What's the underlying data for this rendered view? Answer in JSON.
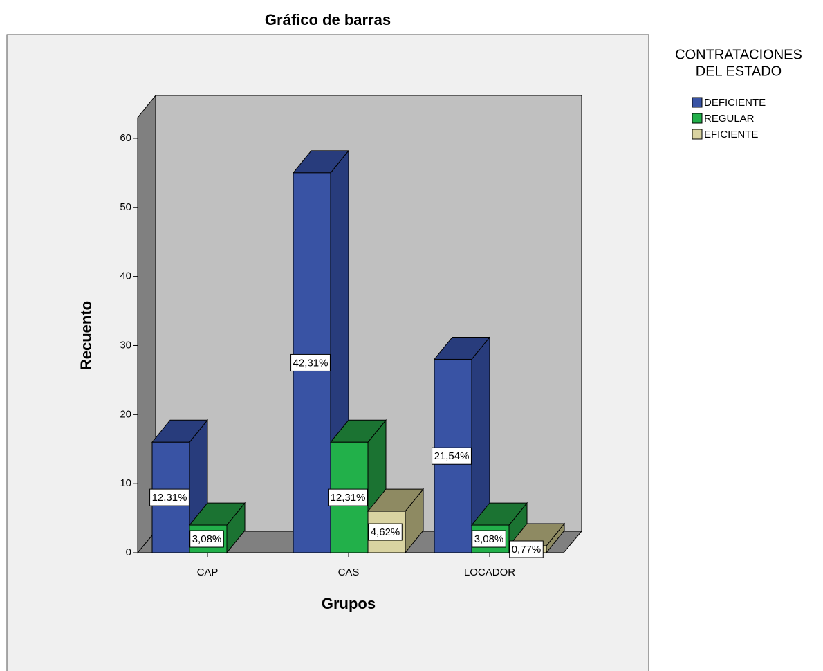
{
  "chart_data": {
    "type": "bar3d",
    "title": "Gráfico de barras",
    "x_label": "Grupos",
    "y_label": "Recuento",
    "categories": [
      "CAP",
      "CAS",
      "LOCADOR"
    ],
    "legend_title": [
      "CONTRATACIONES",
      "DEL ESTADO"
    ],
    "legend_position": "right",
    "series": [
      {
        "name": "DEFICIENTE",
        "color": "#3953a4",
        "shade": "#283c7c",
        "values": [
          16,
          55,
          28
        ],
        "value_labels": [
          "12,31%",
          "42,31%",
          "21,54%"
        ]
      },
      {
        "name": "REGULAR",
        "color": "#22b04a",
        "shade": "#1b7332",
        "values": [
          4,
          16,
          4
        ],
        "value_labels": [
          "3,08%",
          "12,31%",
          "3,08%"
        ]
      },
      {
        "name": "EFICIENTE",
        "color": "#d9d3a1",
        "shade": "#8e8a62",
        "values": [
          null,
          6,
          1
        ],
        "value_labels": [
          null,
          "4,62%",
          "0,77%"
        ]
      }
    ],
    "ylim": [
      0,
      63
    ],
    "yticks": [
      0,
      10,
      20,
      30,
      40,
      50,
      60
    ]
  }
}
